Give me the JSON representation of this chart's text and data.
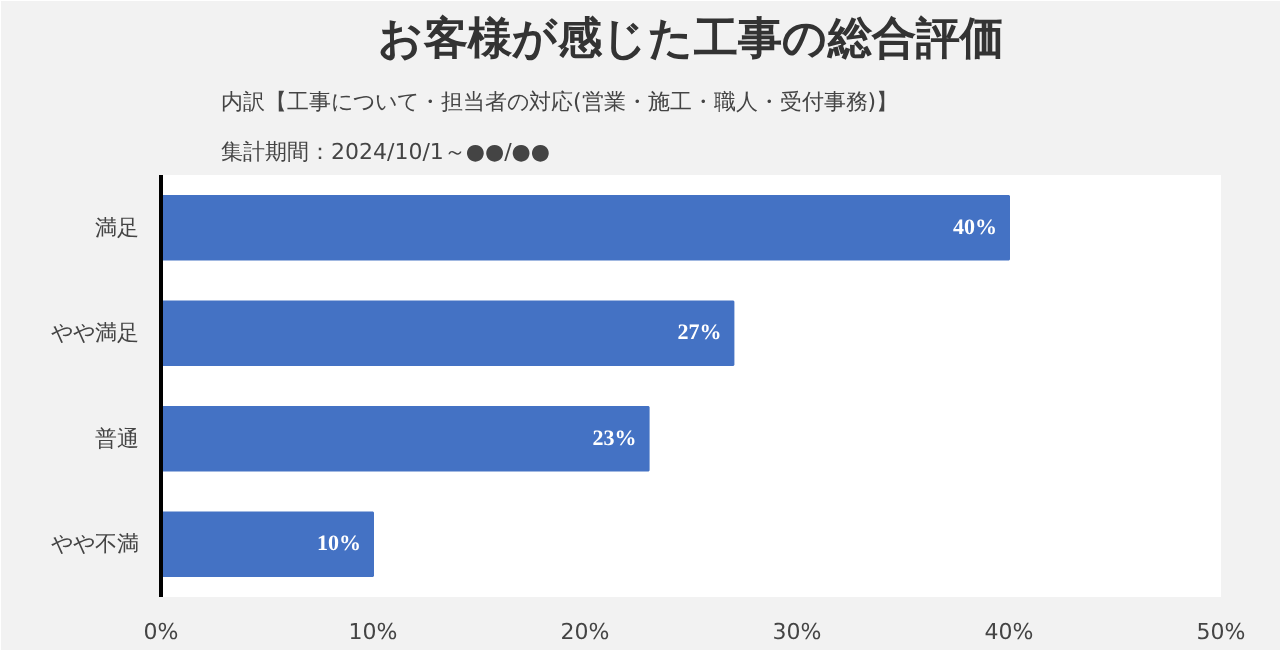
{
  "chart_data": {
    "type": "bar",
    "orientation": "horizontal",
    "title": "お客様が感じた工事の総合評価",
    "subtitle": "内訳【工事について・担当者の対応(営業・施工・職人・受付事務)】",
    "annotations": [
      "集計期間：2024/10/1～●●/●●"
    ],
    "categories": [
      "満足",
      "やや満足",
      "普通",
      "やや不満"
    ],
    "values": [
      40,
      27,
      23,
      10
    ],
    "color": "#4472c4",
    "value_labels": [
      "40%",
      "27%",
      "23%",
      "10%"
    ],
    "xlim": [
      0,
      50
    ],
    "xticks": [
      {
        "value": 0,
        "label": "0%"
      },
      {
        "value": 10,
        "label": "10%"
      },
      {
        "value": 20,
        "label": "20%"
      },
      {
        "value": 30,
        "label": "30%"
      },
      {
        "value": 40,
        "label": "40%"
      },
      {
        "value": 50,
        "label": "50%"
      }
    ]
  }
}
